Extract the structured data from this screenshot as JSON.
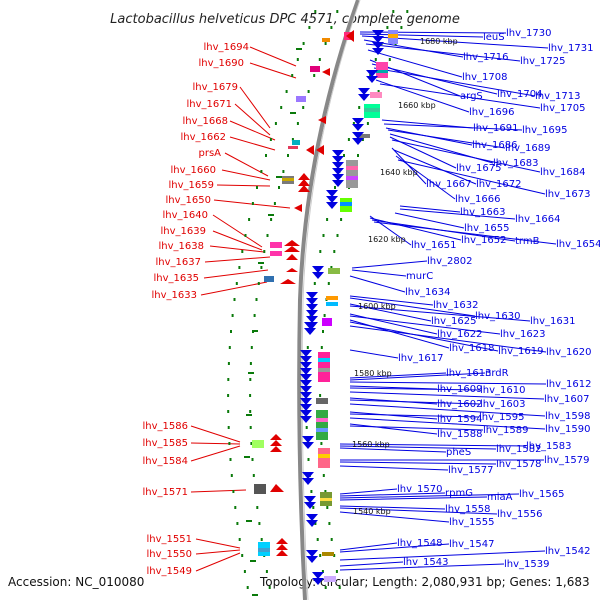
{
  "title": "Lactobacillus helveticus DPC 4571, complete genome",
  "footer": {
    "accession": "Accession: NC_010080",
    "summary": "Topology: circular; Length: 2,080,931 bp; Genes: 1,683"
  },
  "colors": {
    "forward": "#e00000",
    "reverse": "#0000e0",
    "backbone": "#888888",
    "tick": "#0a7a0a"
  },
  "kbp_marks": [
    "1680 kbp",
    "1660 kbp",
    "1640 kbp",
    "1620 kbp",
    "1600 kbp",
    "1580 kbp",
    "1560 kbp",
    "1540 kbp"
  ],
  "forward_genes": [
    "lhv_1694",
    "lhv_1690",
    "lhv_1679",
    "lhv_1671",
    "lhv_1668",
    "lhv_1662",
    "prsA",
    "lhv_1660",
    "lhv_1659",
    "lhv_1650",
    "lhv_1640",
    "lhv_1639",
    "lhv_1638",
    "lhv_1637",
    "lhv_1635",
    "lhv_1633",
    "lhv_1586",
    "lhv_1585",
    "lhv_1584",
    "lhv_1571",
    "lhv_1551",
    "lhv_1550",
    "lhv_1549"
  ],
  "reverse_genes": [
    "lhv_1730",
    "leuS",
    "lhv_1731",
    "lhv_1716",
    "lhv_1725",
    "lhv_1708",
    "argS",
    "lhv_1704",
    "lhv_1713",
    "lhv_1696",
    "lhv_1705",
    "lhv_1691",
    "lhv_1695",
    "lhv_1686",
    "lhv_1689",
    "lhv_1683",
    "lhv_1675",
    "lhv_1684",
    "lhv_1667",
    "lhv_1672",
    "lhv_1666",
    "lhv_1673",
    "lhv_1663",
    "lhv_1664",
    "lhv_1655",
    "lhv_1651",
    "lhv_1652",
    "trmB",
    "lhv_1654",
    "lhv_2802",
    "murC",
    "lhv_1634",
    "lhv_1632",
    "lhv_1630",
    "lhv_1625",
    "lhv_1631",
    "lhv_1622",
    "lhv_1623",
    "lhv_1618",
    "lhv_1619",
    "lhv_1620",
    "lhv_1617",
    "lhv_1613",
    "nrdR",
    "lhv_1612",
    "lhv_1609",
    "lhv_1610",
    "lhv_1607",
    "lhv_1602",
    "lhv_1603",
    "lhv_1598",
    "lhv_1594",
    "lhv_1595",
    "lhv_1590",
    "lhv_1588",
    "lhv_1589",
    "lhv_1583",
    "lhv_1582",
    "pheS",
    "lhv_1579",
    "lhv_1578",
    "lhv_1577",
    "lhv_1570",
    "rpmG",
    "lhv_1565",
    "miaA",
    "lhv_1558",
    "lhv_1556",
    "lhv_1555",
    "lhv_1548",
    "lhv_1547",
    "lhv_1542",
    "lhv_1543",
    "lhv_1539"
  ]
}
